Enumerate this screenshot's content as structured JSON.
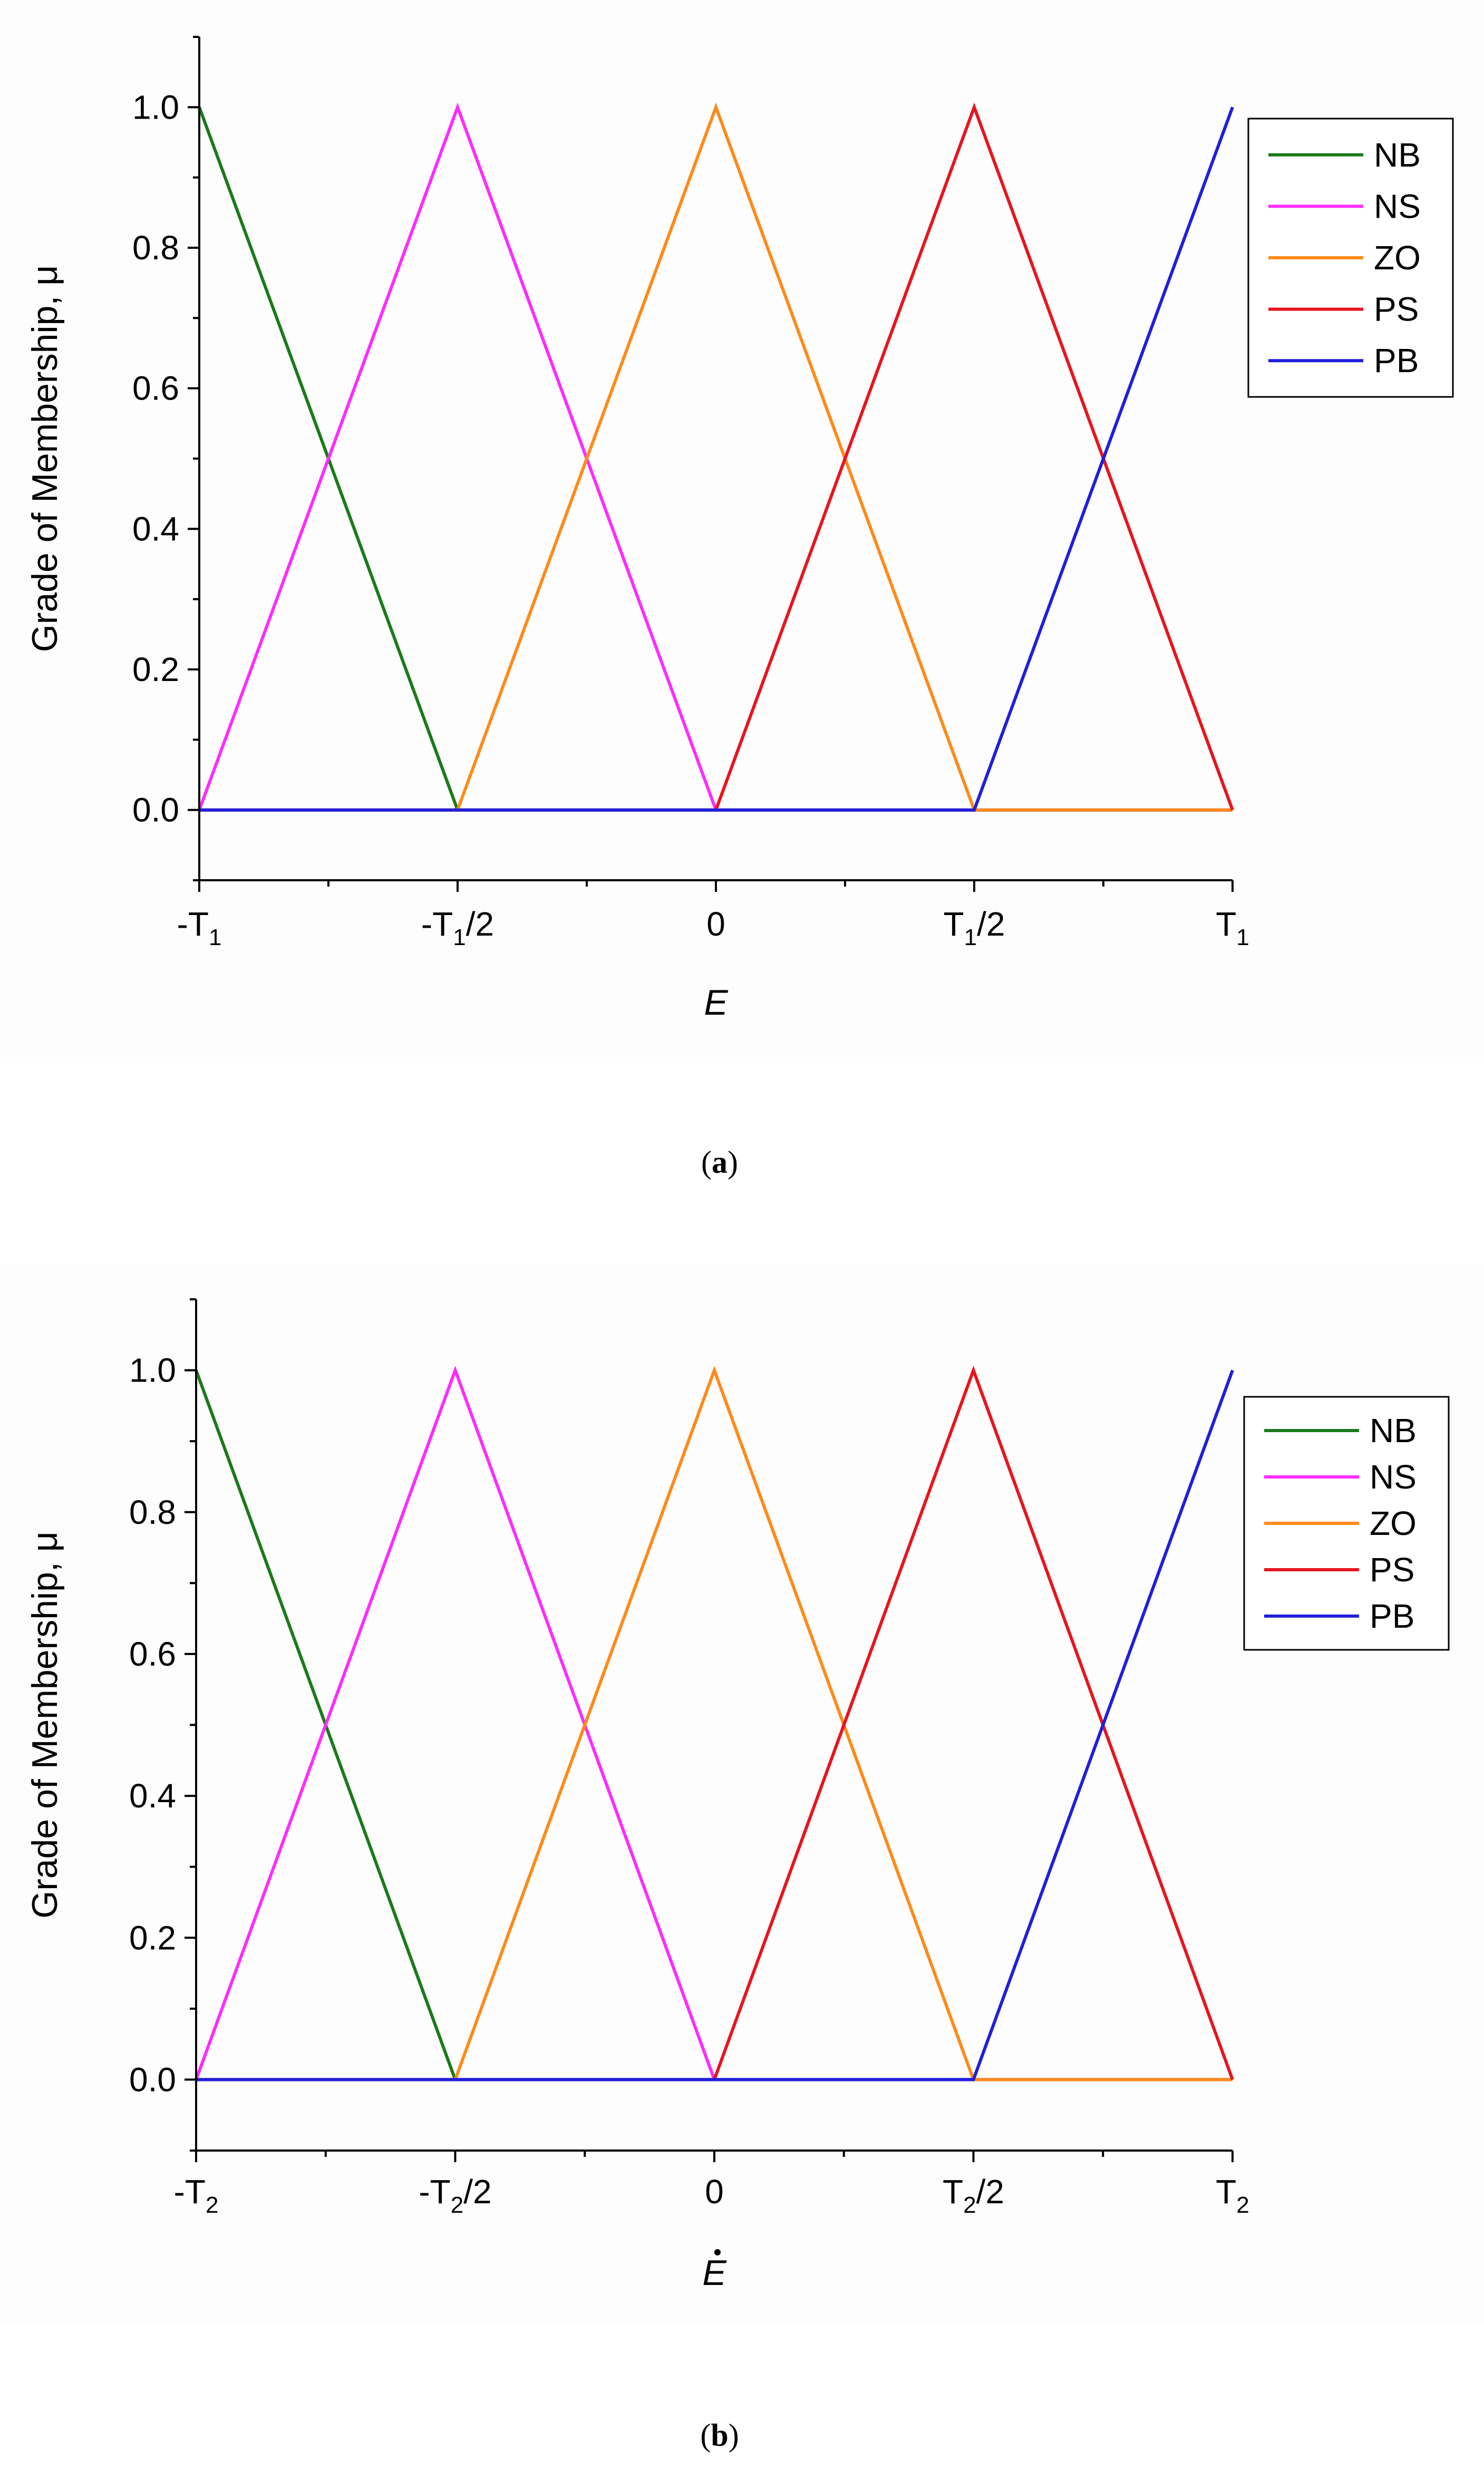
{
  "colors": {
    "NB": "#1a7a1a",
    "NS": "#ff2bff",
    "ZO": "#ff8a1a",
    "PS": "#e8141e",
    "PB": "#1f1fdc"
  },
  "chart_data": [
    {
      "type": "line",
      "caption_open": "(",
      "caption_letter": "a",
      "caption_close": ")",
      "ylabel": "Grade of Membership, μ",
      "xlabel": "E",
      "xlabel_dot": false,
      "xlim": [
        -1,
        1
      ],
      "ylim": [
        -0.1,
        1.1
      ],
      "yticks": [
        0.0,
        0.2,
        0.4,
        0.6,
        0.8,
        1.0
      ],
      "ytick_labels": [
        "0.0",
        "0.2",
        "0.4",
        "0.6",
        "0.8",
        "1.0"
      ],
      "xticks": [
        -1,
        -0.5,
        0,
        0.5,
        1
      ],
      "xtick_labels": [
        {
          "pre": "-T",
          "sub": "1",
          "post": ""
        },
        {
          "pre": "-T",
          "sub": "1",
          "post": "/2"
        },
        {
          "pre": "0",
          "sub": "",
          "post": ""
        },
        {
          "pre": "T",
          "sub": "1",
          "post": "/2"
        },
        {
          "pre": "T",
          "sub": "1",
          "post": ""
        }
      ],
      "legend": [
        "NB",
        "NS",
        "ZO",
        "PS",
        "PB"
      ],
      "series": [
        {
          "name": "NB",
          "x": [
            -1,
            -0.5,
            1
          ],
          "y": [
            1,
            0,
            0
          ]
        },
        {
          "name": "NS",
          "x": [
            -1,
            -0.5,
            0,
            1
          ],
          "y": [
            0,
            1,
            0,
            0
          ]
        },
        {
          "name": "ZO",
          "x": [
            -1,
            -0.5,
            0,
            0.5,
            1
          ],
          "y": [
            0,
            0,
            1,
            0,
            0
          ]
        },
        {
          "name": "PS",
          "x": [
            -1,
            0,
            0.5,
            1
          ],
          "y": [
            0,
            0,
            1,
            0
          ]
        },
        {
          "name": "PB",
          "x": [
            -1,
            0.5,
            1
          ],
          "y": [
            0,
            0,
            1
          ]
        }
      ]
    },
    {
      "type": "line",
      "caption_open": "(",
      "caption_letter": "b",
      "caption_close": ")",
      "ylabel": "Grade of Membership, μ",
      "xlabel": "E",
      "xlabel_dot": true,
      "xlim": [
        -1,
        1
      ],
      "ylim": [
        -0.1,
        1.1
      ],
      "yticks": [
        0.0,
        0.2,
        0.4,
        0.6,
        0.8,
        1.0
      ],
      "ytick_labels": [
        "0.0",
        "0.2",
        "0.4",
        "0.6",
        "0.8",
        "1.0"
      ],
      "xticks": [
        -1,
        -0.5,
        0,
        0.5,
        1
      ],
      "xtick_labels": [
        {
          "pre": "-T",
          "sub": "2",
          "post": ""
        },
        {
          "pre": "-T",
          "sub": "2",
          "post": "/2"
        },
        {
          "pre": "0",
          "sub": "",
          "post": ""
        },
        {
          "pre": "T",
          "sub": "2",
          "post": "/2"
        },
        {
          "pre": "T",
          "sub": "2",
          "post": ""
        }
      ],
      "legend": [
        "NB",
        "NS",
        "ZO",
        "PS",
        "PB"
      ],
      "series": [
        {
          "name": "NB",
          "x": [
            -1,
            -0.5,
            1
          ],
          "y": [
            1,
            0,
            0
          ]
        },
        {
          "name": "NS",
          "x": [
            -1,
            -0.5,
            0,
            1
          ],
          "y": [
            0,
            1,
            0,
            0
          ]
        },
        {
          "name": "ZO",
          "x": [
            -1,
            -0.5,
            0,
            0.5,
            1
          ],
          "y": [
            0,
            0,
            1,
            0,
            0
          ]
        },
        {
          "name": "PS",
          "x": [
            -1,
            0,
            0.5,
            1
          ],
          "y": [
            0,
            0,
            1,
            0
          ]
        },
        {
          "name": "PB",
          "x": [
            -1,
            0.5,
            1
          ],
          "y": [
            0,
            0,
            1
          ]
        }
      ]
    }
  ]
}
